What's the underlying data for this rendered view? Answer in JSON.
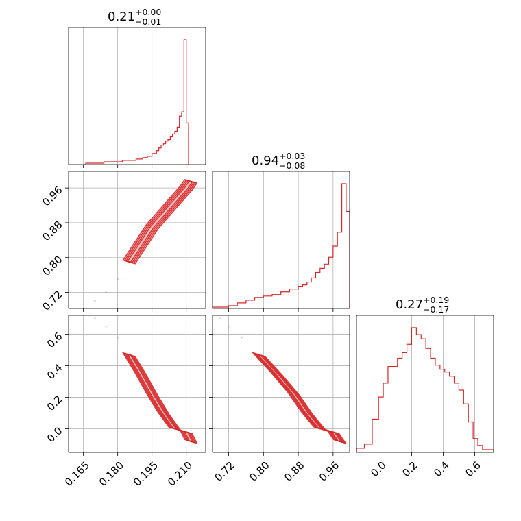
{
  "colors": {
    "accent": "#d62728",
    "grid": "#b0b0b0",
    "frame": "#000000"
  },
  "titles": {
    "p0": {
      "value": "0.21",
      "plus": "+0.00",
      "minus": "−0.01"
    },
    "p1": {
      "value": "0.94",
      "plus": "+0.03",
      "minus": "−0.08"
    },
    "p2": {
      "value": "0.27",
      "plus": "+0.19",
      "minus": "−0.17"
    }
  },
  "chart_data": {
    "type": "corner",
    "parameters": [
      {
        "range": [
          0.1585,
          0.2185
        ],
        "ticks": [
          0.165,
          0.18,
          0.195,
          0.21
        ],
        "tick_labels": [
          "0.165",
          "0.180",
          "0.195",
          "0.210"
        ]
      },
      {
        "range": [
          0.683,
          0.998
        ],
        "ticks": [
          0.72,
          0.8,
          0.88,
          0.96
        ],
        "tick_labels": [
          "0.72",
          "0.80",
          "0.88",
          "0.96"
        ]
      },
      {
        "range": [
          -0.15,
          0.72
        ],
        "ticks": [
          0.0,
          0.2,
          0.4,
          0.6
        ],
        "tick_labels": [
          "0.0",
          "0.2",
          "0.4",
          "0.6"
        ]
      }
    ],
    "hist_0": {
      "bin_edges": [
        0.166,
        0.17,
        0.174,
        0.178,
        0.182,
        0.185,
        0.188,
        0.191,
        0.193,
        0.195,
        0.197,
        0.198,
        0.199,
        0.2,
        0.201,
        0.202,
        0.203,
        0.204,
        0.205,
        0.206,
        0.207,
        0.208,
        0.209,
        0.21,
        0.211
      ],
      "counts": [
        0.01,
        0.01,
        0.02,
        0.02,
        0.03,
        0.03,
        0.04,
        0.05,
        0.06,
        0.08,
        0.1,
        0.12,
        0.14,
        0.15,
        0.17,
        0.18,
        0.2,
        0.22,
        0.24,
        0.27,
        0.35,
        0.38,
        0.9,
        0.3
      ]
    },
    "hist_1": {
      "bin_edges": [
        0.683,
        0.72,
        0.74,
        0.76,
        0.78,
        0.8,
        0.82,
        0.84,
        0.86,
        0.88,
        0.89,
        0.9,
        0.91,
        0.92,
        0.93,
        0.94,
        0.95,
        0.96,
        0.97,
        0.98,
        0.99,
        0.998
      ],
      "counts": [
        0.01,
        0.02,
        0.04,
        0.06,
        0.08,
        0.09,
        0.1,
        0.12,
        0.14,
        0.16,
        0.17,
        0.19,
        0.22,
        0.26,
        0.29,
        0.32,
        0.37,
        0.45,
        0.55,
        0.9,
        0.7
      ]
    },
    "hist_2": {
      "bin_edges": [
        -0.15,
        -0.1,
        -0.05,
        -0.01,
        0.02,
        0.05,
        0.08,
        0.11,
        0.14,
        0.17,
        0.2,
        0.23,
        0.26,
        0.29,
        0.32,
        0.35,
        0.38,
        0.41,
        0.44,
        0.47,
        0.5,
        0.53,
        0.56,
        0.59,
        0.62,
        0.65,
        0.72
      ],
      "counts": [
        0.03,
        0.06,
        0.24,
        0.4,
        0.5,
        0.62,
        0.62,
        0.68,
        0.72,
        0.78,
        0.9,
        0.85,
        0.82,
        0.75,
        0.68,
        0.63,
        0.6,
        0.58,
        0.55,
        0.5,
        0.45,
        0.35,
        0.22,
        0.1,
        0.05,
        0.02
      ]
    },
    "samples": {
      "x0": [
        0.17,
        0.175,
        0.18,
        0.185,
        0.19,
        0.195,
        0.2,
        0.205,
        0.21,
        0.212
      ],
      "x1": [
        0.7,
        0.72,
        0.75,
        0.79,
        0.83,
        0.87,
        0.9,
        0.93,
        0.96,
        0.975
      ],
      "x2": [
        0.7,
        0.65,
        0.58,
        0.47,
        0.35,
        0.22,
        0.1,
        0.0,
        -0.02,
        -0.08
      ]
    },
    "contour_levels": 4
  }
}
